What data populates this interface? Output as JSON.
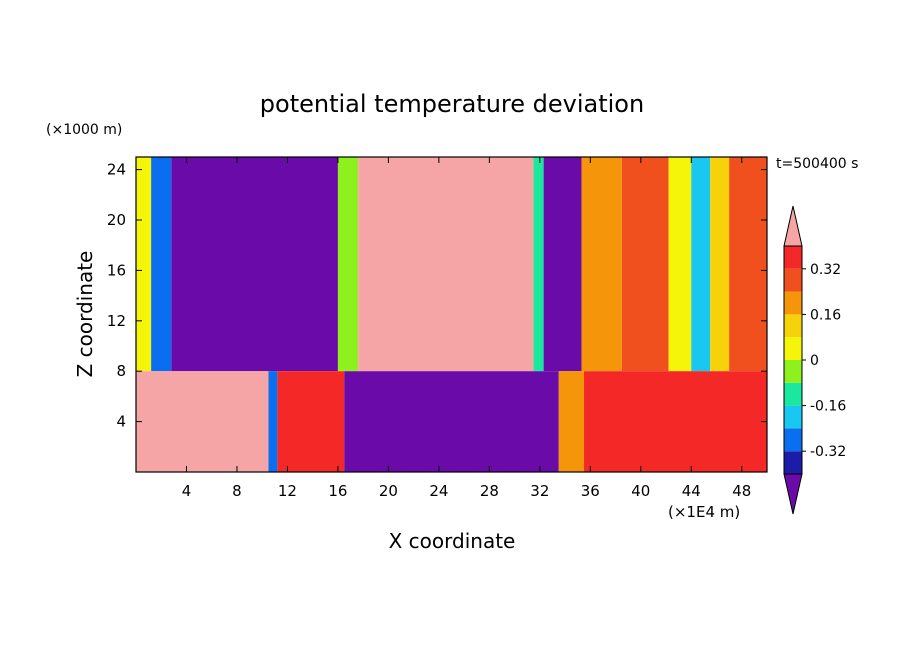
{
  "chart_data": {
    "type": "heatmap",
    "title": "potential temperature deviation",
    "xlabel": "X coordinate",
    "ylabel": "Z coordinate",
    "x_unit": "(×1E4 m)",
    "y_unit": "(×1000 m)",
    "time_label": "t=500400 s",
    "xlim": [
      0,
      50
    ],
    "ylim": [
      0,
      25
    ],
    "x_ticks": [
      4,
      8,
      12,
      16,
      20,
      24,
      28,
      32,
      36,
      40,
      44,
      48
    ],
    "y_ticks": [
      4,
      8,
      12,
      16,
      20,
      24
    ],
    "colorbar": {
      "levels": [
        -0.4,
        -0.32,
        -0.24,
        -0.16,
        -0.08,
        0,
        0.08,
        0.16,
        0.24,
        0.32,
        0.4
      ],
      "colors": [
        "#6a0aa8",
        "#1c1ca8",
        "#0a6ef0",
        "#19c8f0",
        "#19e89e",
        "#8ef01c",
        "#f5f50a",
        "#f5d20a",
        "#f5960a",
        "#f0501e",
        "#f52828",
        "#f5a5a5"
      ],
      "tick_labels": [
        "0.32",
        "0.16",
        "0",
        "-0.16",
        "-0.32"
      ],
      "tick_values": [
        0.32,
        0.16,
        0,
        -0.16,
        -0.32
      ]
    },
    "upper_layer_columns": [
      {
        "x0": 0,
        "x1": 1.2,
        "value": 0.05
      },
      {
        "x0": 1.2,
        "x1": 2.8,
        "value": -0.25
      },
      {
        "x0": 2.8,
        "x1": 16,
        "value": -0.44
      },
      {
        "x0": 16,
        "x1": 17.6,
        "value": -0.05
      },
      {
        "x0": 17.6,
        "x1": 31.5,
        "value": 0.44
      },
      {
        "x0": 31.5,
        "x1": 32.3,
        "value": -0.1
      },
      {
        "x0": 32.3,
        "x1": 35.3,
        "value": -0.44
      },
      {
        "x0": 35.3,
        "x1": 38.5,
        "value": 0.22
      },
      {
        "x0": 38.5,
        "x1": 42.2,
        "value": 0.3
      },
      {
        "x0": 42.2,
        "x1": 44,
        "value": 0.02
      },
      {
        "x0": 44,
        "x1": 45.5,
        "value": -0.2
      },
      {
        "x0": 45.5,
        "x1": 47,
        "value": 0.08
      },
      {
        "x0": 47,
        "x1": 50,
        "value": 0.24
      }
    ],
    "lower_layer_columns": [
      {
        "x0": 0,
        "x1": 10.5,
        "value": 0.4
      },
      {
        "x0": 10.5,
        "x1": 11.2,
        "value": -0.3
      },
      {
        "x0": 11.2,
        "x1": 16.5,
        "value": 0.36
      },
      {
        "x0": 16.5,
        "x1": 33.5,
        "value": -0.44
      },
      {
        "x0": 33.5,
        "x1": 35.5,
        "value": 0.2
      },
      {
        "x0": 35.5,
        "x1": 50,
        "value": 0.36
      }
    ],
    "interface_z": 8
  }
}
